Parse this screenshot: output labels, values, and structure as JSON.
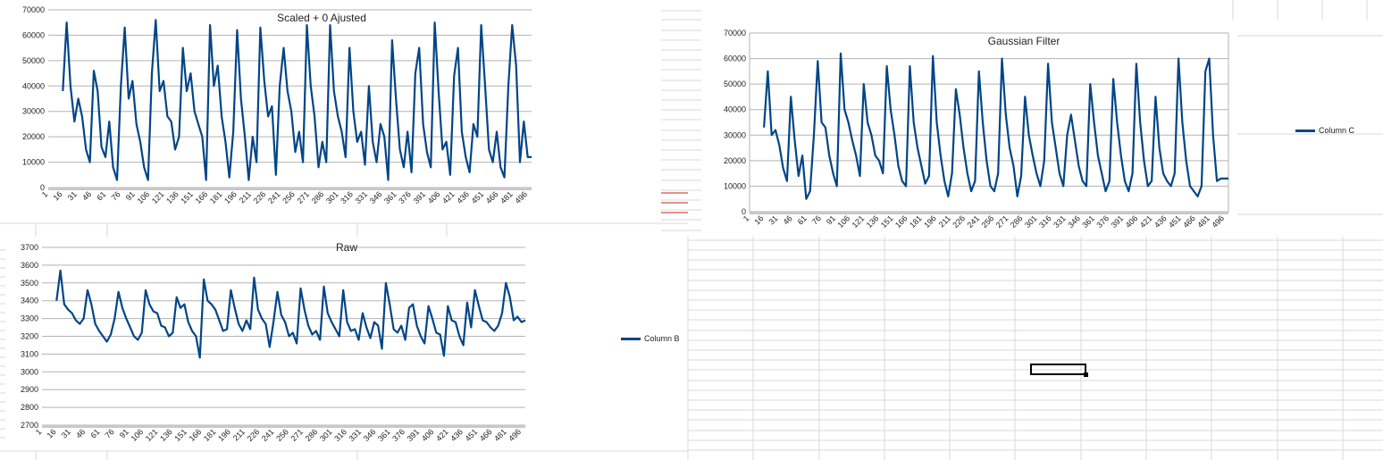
{
  "colors": {
    "series": "#004586",
    "grid": "#b3b3b3",
    "cellgrid": "#d9d9d9",
    "marker": "#c9211e"
  },
  "xtick_labels": [
    "1",
    "16",
    "31",
    "46",
    "61",
    "76",
    "91",
    "106",
    "121",
    "136",
    "151",
    "166",
    "181",
    "196",
    "211",
    "226",
    "241",
    "256",
    "271",
    "286",
    "301",
    "316",
    "331",
    "346",
    "361",
    "376",
    "391",
    "406",
    "421",
    "436",
    "451",
    "466",
    "481",
    "496"
  ],
  "chart_data": [
    {
      "id": "scaled",
      "type": "line",
      "title": "Scaled + 0 Ajusted",
      "xlabel": "",
      "ylabel": "",
      "ylim": [
        0,
        70000
      ],
      "yticks": [
        0,
        10000,
        20000,
        30000,
        40000,
        50000,
        60000,
        70000
      ],
      "ytick_labels": [
        "0",
        "10000",
        "20000",
        "30000",
        "40000",
        "50000",
        "60000",
        "70000"
      ],
      "grid": true,
      "legend": "none",
      "x_range": [
        1,
        500
      ],
      "series": [
        {
          "x": [
            16,
            20,
            24,
            28,
            32,
            36,
            40,
            44,
            48,
            52,
            56,
            60,
            64,
            68,
            72,
            76,
            80,
            84,
            88,
            92,
            96,
            100,
            104,
            108,
            112,
            116,
            120,
            124,
            128,
            132,
            136,
            140,
            144,
            148,
            152,
            156,
            160,
            164,
            168,
            172,
            176,
            180,
            184,
            188,
            192,
            196,
            200,
            204,
            208,
            212,
            216,
            220,
            224,
            228,
            232,
            236,
            240,
            244,
            248,
            252,
            256,
            260,
            264,
            268,
            272,
            276,
            280,
            284,
            288,
            292,
            296,
            300,
            304,
            308,
            312,
            316,
            320,
            324,
            328,
            332,
            336,
            340,
            344,
            348,
            352,
            356,
            360,
            364,
            368,
            372,
            376,
            380,
            384,
            388,
            392,
            396,
            400,
            404,
            408,
            412,
            416,
            420,
            424,
            428,
            432,
            436,
            440,
            444,
            448,
            452,
            456,
            460,
            464,
            468,
            472,
            476,
            480,
            484,
            488,
            492,
            496,
            500
          ],
          "values": [
            38000,
            65000,
            40000,
            26000,
            35000,
            28000,
            15000,
            10000,
            46000,
            38000,
            16000,
            12000,
            26000,
            8000,
            3000,
            40000,
            63000,
            35000,
            42000,
            25000,
            18000,
            8000,
            3000,
            45000,
            66000,
            38000,
            42000,
            28000,
            26000,
            15000,
            20000,
            55000,
            38000,
            45000,
            30000,
            25000,
            20000,
            3000,
            64000,
            40000,
            48000,
            28000,
            18000,
            4000,
            22000,
            62000,
            35000,
            20000,
            3000,
            20000,
            10000,
            63000,
            42000,
            28000,
            32000,
            5000,
            40000,
            55000,
            38000,
            30000,
            14000,
            22000,
            10000,
            64000,
            40000,
            28000,
            8000,
            18000,
            10000,
            64000,
            38000,
            28000,
            22000,
            12000,
            55000,
            30000,
            18000,
            22000,
            9000,
            40000,
            18000,
            10000,
            25000,
            20000,
            3000,
            58000,
            35000,
            15000,
            8000,
            22000,
            6000,
            45000,
            55000,
            25000,
            14000,
            8000,
            65000,
            38000,
            15000,
            18000,
            5000,
            44000,
            55000,
            22000,
            12000,
            6000,
            25000,
            20000,
            64000,
            40000,
            15000,
            10000,
            22000,
            8000,
            4000,
            40000,
            64000,
            48000,
            10000,
            26000,
            12000,
            12000
          ]
        }
      ]
    },
    {
      "id": "gaussian",
      "type": "line",
      "title": "Gaussian Filter",
      "xlabel": "",
      "ylabel": "",
      "ylim": [
        0,
        70000
      ],
      "yticks": [
        0,
        10000,
        20000,
        30000,
        40000,
        50000,
        60000,
        70000
      ],
      "ytick_labels": [
        "0",
        "10000",
        "20000",
        "30000",
        "40000",
        "50000",
        "60000",
        "70000"
      ],
      "grid": true,
      "legend": "right",
      "x_range": [
        1,
        500
      ],
      "series": [
        {
          "name": "Column C",
          "x": [
            16,
            20,
            24,
            28,
            32,
            36,
            40,
            44,
            48,
            52,
            56,
            60,
            64,
            68,
            72,
            76,
            80,
            84,
            88,
            92,
            96,
            100,
            104,
            108,
            112,
            116,
            120,
            124,
            128,
            132,
            136,
            140,
            144,
            148,
            152,
            156,
            160,
            164,
            168,
            172,
            176,
            180,
            184,
            188,
            192,
            196,
            200,
            204,
            208,
            212,
            216,
            220,
            224,
            228,
            232,
            236,
            240,
            244,
            248,
            252,
            256,
            260,
            264,
            268,
            272,
            276,
            280,
            284,
            288,
            292,
            296,
            300,
            304,
            308,
            312,
            316,
            320,
            324,
            328,
            332,
            336,
            340,
            344,
            348,
            352,
            356,
            360,
            364,
            368,
            372,
            376,
            380,
            384,
            388,
            392,
            396,
            400,
            404,
            408,
            412,
            416,
            420,
            424,
            428,
            432,
            436,
            440,
            444,
            448,
            452,
            456,
            460,
            464,
            468,
            472,
            476,
            480,
            484,
            488,
            492,
            496,
            500
          ],
          "values": [
            33000,
            55000,
            30000,
            32000,
            26000,
            17000,
            12000,
            45000,
            28000,
            14000,
            22000,
            5000,
            8000,
            30000,
            59000,
            35000,
            33000,
            22000,
            15000,
            10000,
            62000,
            40000,
            35000,
            28000,
            22000,
            14000,
            50000,
            35000,
            30000,
            22000,
            20000,
            15000,
            57000,
            40000,
            30000,
            18000,
            12000,
            10000,
            57000,
            35000,
            25000,
            18000,
            11000,
            14000,
            61000,
            35000,
            22000,
            12000,
            6000,
            15000,
            48000,
            38000,
            25000,
            15000,
            8000,
            12000,
            55000,
            35000,
            20000,
            10000,
            8000,
            15000,
            60000,
            38000,
            25000,
            18000,
            6000,
            14000,
            45000,
            30000,
            22000,
            15000,
            10000,
            20000,
            58000,
            35000,
            25000,
            15000,
            10000,
            30000,
            38000,
            28000,
            18000,
            12000,
            10000,
            50000,
            35000,
            22000,
            15000,
            8000,
            12000,
            52000,
            35000,
            22000,
            12000,
            8000,
            15000,
            58000,
            35000,
            20000,
            10000,
            12000,
            45000,
            25000,
            15000,
            12000,
            10000,
            15000,
            60000,
            35000,
            20000,
            10000,
            8000,
            6000,
            10000,
            55000,
            60000,
            30000,
            12000,
            13000,
            13000,
            13000
          ]
        }
      ]
    },
    {
      "id": "raw",
      "type": "line",
      "title": "Raw",
      "xlabel": "",
      "ylabel": "",
      "ylim": [
        2700,
        3700
      ],
      "yticks": [
        2700,
        2800,
        2900,
        3000,
        3100,
        3200,
        3300,
        3400,
        3500,
        3600,
        3700
      ],
      "ytick_labels": [
        "2700",
        "2800",
        "2900",
        "3000",
        "3100",
        "3200",
        "3300",
        "3400",
        "3500",
        "3600",
        "3700"
      ],
      "grid": true,
      "legend": "right",
      "x_range": [
        1,
        500
      ],
      "series": [
        {
          "name": "Column B",
          "x": [
            16,
            20,
            24,
            28,
            32,
            36,
            40,
            44,
            48,
            52,
            56,
            60,
            64,
            68,
            72,
            76,
            80,
            84,
            88,
            92,
            96,
            100,
            104,
            108,
            112,
            116,
            120,
            124,
            128,
            132,
            136,
            140,
            144,
            148,
            152,
            156,
            160,
            164,
            168,
            172,
            176,
            180,
            184,
            188,
            192,
            196,
            200,
            204,
            208,
            212,
            216,
            220,
            224,
            228,
            232,
            236,
            240,
            244,
            248,
            252,
            256,
            260,
            264,
            268,
            272,
            276,
            280,
            284,
            288,
            292,
            296,
            300,
            304,
            308,
            312,
            316,
            320,
            324,
            328,
            332,
            336,
            340,
            344,
            348,
            352,
            356,
            360,
            364,
            368,
            372,
            376,
            380,
            384,
            388,
            392,
            396,
            400,
            404,
            408,
            412,
            416,
            420,
            424,
            428,
            432,
            436,
            440,
            444,
            448,
            452,
            456,
            460,
            464,
            468,
            472,
            476,
            480,
            484,
            488,
            492,
            496,
            500
          ],
          "values": [
            3400,
            3570,
            3380,
            3350,
            3330,
            3290,
            3270,
            3300,
            3460,
            3380,
            3270,
            3230,
            3200,
            3170,
            3210,
            3300,
            3450,
            3360,
            3300,
            3250,
            3200,
            3180,
            3220,
            3460,
            3380,
            3340,
            3330,
            3260,
            3250,
            3200,
            3220,
            3420,
            3360,
            3380,
            3280,
            3230,
            3200,
            3080,
            3520,
            3400,
            3380,
            3350,
            3290,
            3230,
            3240,
            3460,
            3360,
            3270,
            3230,
            3290,
            3240,
            3530,
            3350,
            3300,
            3270,
            3140,
            3280,
            3450,
            3320,
            3280,
            3200,
            3220,
            3160,
            3470,
            3350,
            3260,
            3210,
            3230,
            3180,
            3480,
            3330,
            3280,
            3240,
            3200,
            3460,
            3280,
            3230,
            3240,
            3180,
            3330,
            3250,
            3190,
            3280,
            3260,
            3130,
            3500,
            3380,
            3240,
            3220,
            3260,
            3180,
            3360,
            3380,
            3260,
            3200,
            3160,
            3370,
            3300,
            3220,
            3210,
            3090,
            3370,
            3290,
            3280,
            3200,
            3150,
            3390,
            3250,
            3460,
            3370,
            3290,
            3280,
            3250,
            3230,
            3260,
            3330,
            3500,
            3420,
            3290,
            3310,
            3280,
            3290
          ]
        }
      ]
    }
  ]
}
